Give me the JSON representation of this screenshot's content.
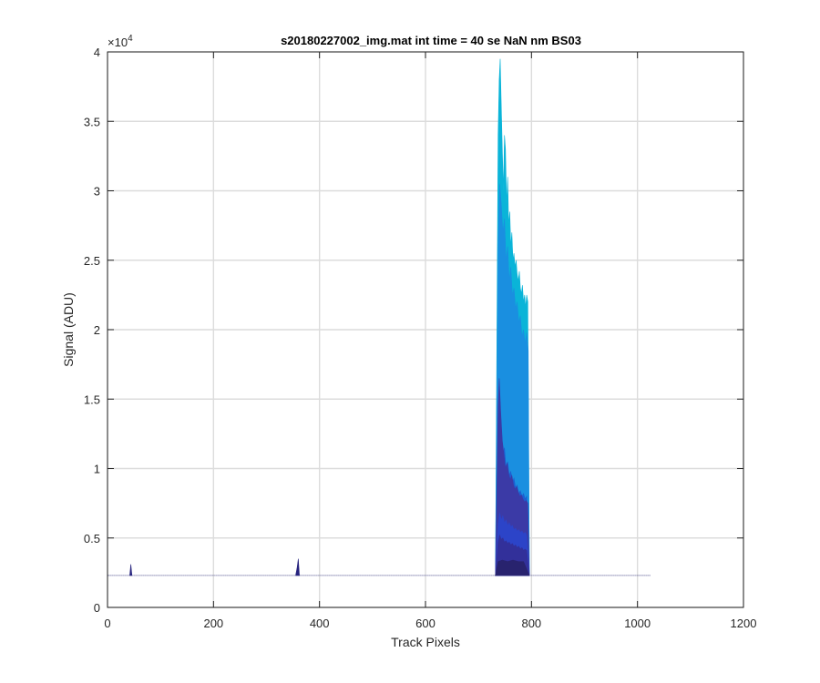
{
  "chart_data": {
    "type": "area",
    "title": "s20180227002_img.mat int time = 40 se  NaN nm BS03",
    "xlabel": "Track Pixels",
    "ylabel": "Signal (ADU)",
    "xlim": [
      0,
      1200
    ],
    "ylim": [
      0,
      40000
    ],
    "x_ticks": [
      0,
      200,
      400,
      600,
      800,
      1000,
      1200
    ],
    "x_tick_labels": [
      "0",
      "200",
      "400",
      "600",
      "800",
      "1000",
      "1200"
    ],
    "y_ticks": [
      0,
      5000,
      10000,
      15000,
      20000,
      25000,
      30000,
      35000,
      40000
    ],
    "y_tick_labels": [
      "0",
      "0.5",
      "1",
      "1.5",
      "2",
      "2.5",
      "3",
      "3.5",
      "4"
    ],
    "y_exponent_label": "×10",
    "y_exponent_power": "4",
    "grid": true,
    "baseline": 2300,
    "x_extent": [
      1,
      1024
    ],
    "series": [
      {
        "color": "#0ab4d8",
        "points": [
          [
            732,
            2300
          ],
          [
            737,
            34000
          ],
          [
            739,
            38000
          ],
          [
            741,
            39500
          ],
          [
            743,
            36000
          ],
          [
            745,
            33000
          ],
          [
            747,
            30000
          ],
          [
            749,
            34000
          ],
          [
            751,
            33000
          ],
          [
            753,
            29000
          ],
          [
            755,
            31000
          ],
          [
            757,
            27500
          ],
          [
            759,
            28500
          ],
          [
            761,
            26000
          ],
          [
            763,
            27000
          ],
          [
            765,
            25000
          ],
          [
            767,
            25500
          ],
          [
            769,
            24500
          ],
          [
            771,
            25000
          ],
          [
            773,
            24000
          ],
          [
            775,
            23500
          ],
          [
            777,
            24200
          ],
          [
            779,
            23000
          ],
          [
            781,
            22600
          ],
          [
            783,
            23200
          ],
          [
            785,
            22000
          ],
          [
            787,
            22500
          ],
          [
            789,
            21600
          ],
          [
            791,
            22500
          ],
          [
            793,
            22000
          ],
          [
            796,
            2300
          ]
        ]
      },
      {
        "color": "#1a8fe0",
        "points": [
          [
            732,
            2300
          ],
          [
            737,
            26000
          ],
          [
            740,
            30500
          ],
          [
            743,
            29000
          ],
          [
            746,
            27000
          ],
          [
            749,
            28000
          ],
          [
            752,
            25000
          ],
          [
            755,
            26000
          ],
          [
            758,
            23500
          ],
          [
            761,
            24500
          ],
          [
            764,
            22500
          ],
          [
            767,
            23000
          ],
          [
            770,
            21500
          ],
          [
            773,
            22000
          ],
          [
            776,
            20500
          ],
          [
            779,
            21000
          ],
          [
            782,
            19500
          ],
          [
            785,
            20000
          ],
          [
            788,
            19000
          ],
          [
            791,
            19800
          ],
          [
            794,
            18500
          ],
          [
            796,
            2300
          ]
        ]
      },
      {
        "color": "#1c5ed0",
        "points": [
          [
            732,
            2300
          ],
          [
            737,
            11000
          ],
          [
            740,
            13500
          ],
          [
            743,
            12000
          ],
          [
            746,
            11000
          ],
          [
            749,
            11500
          ],
          [
            752,
            10000
          ],
          [
            755,
            10500
          ],
          [
            758,
            9500
          ],
          [
            761,
            9800
          ],
          [
            764,
            9000
          ],
          [
            767,
            9300
          ],
          [
            770,
            8600
          ],
          [
            773,
            8800
          ],
          [
            776,
            8200
          ],
          [
            779,
            8400
          ],
          [
            782,
            8000
          ],
          [
            785,
            8200
          ],
          [
            788,
            7800
          ],
          [
            791,
            8000
          ],
          [
            796,
            2300
          ]
        ]
      },
      {
        "color": "#3b3aa6",
        "points": [
          [
            732,
            2300
          ],
          [
            737,
            14500
          ],
          [
            739,
            16500
          ],
          [
            742,
            14000
          ],
          [
            745,
            12000
          ],
          [
            748,
            11000
          ],
          [
            751,
            10000
          ],
          [
            754,
            10400
          ],
          [
            757,
            9600
          ],
          [
            760,
            9200
          ],
          [
            763,
            9500
          ],
          [
            766,
            8800
          ],
          [
            769,
            8500
          ],
          [
            772,
            8700
          ],
          [
            775,
            8300
          ],
          [
            778,
            8000
          ],
          [
            781,
            8100
          ],
          [
            784,
            7800
          ],
          [
            787,
            7600
          ],
          [
            790,
            7700
          ],
          [
            793,
            7500
          ],
          [
            796,
            2300
          ]
        ]
      },
      {
        "color": "#2c44c8",
        "points": [
          [
            732,
            2300
          ],
          [
            737,
            6000
          ],
          [
            740,
            6800
          ],
          [
            743,
            6300
          ],
          [
            746,
            6600
          ],
          [
            749,
            6100
          ],
          [
            752,
            6300
          ],
          [
            755,
            5900
          ],
          [
            758,
            6100
          ],
          [
            761,
            5800
          ],
          [
            764,
            5900
          ],
          [
            767,
            5600
          ],
          [
            770,
            5700
          ],
          [
            773,
            5500
          ],
          [
            776,
            5600
          ],
          [
            779,
            5400
          ],
          [
            782,
            5500
          ],
          [
            785,
            5300
          ],
          [
            788,
            5400
          ],
          [
            791,
            5200
          ],
          [
            796,
            2300
          ]
        ]
      },
      {
        "color": "#32309a",
        "points": [
          [
            732,
            2300
          ],
          [
            737,
            4700
          ],
          [
            740,
            5200
          ],
          [
            743,
            4900
          ],
          [
            746,
            5000
          ],
          [
            749,
            4700
          ],
          [
            752,
            4800
          ],
          [
            755,
            4600
          ],
          [
            758,
            4700
          ],
          [
            761,
            4500
          ],
          [
            764,
            4600
          ],
          [
            767,
            4400
          ],
          [
            770,
            4500
          ],
          [
            773,
            4300
          ],
          [
            776,
            4400
          ],
          [
            779,
            4200
          ],
          [
            782,
            4300
          ],
          [
            785,
            4100
          ],
          [
            788,
            4200
          ],
          [
            791,
            4100
          ],
          [
            796,
            2300
          ]
        ]
      },
      {
        "color": "#28236e",
        "points": [
          [
            732,
            2300
          ],
          [
            737,
            3300
          ],
          [
            745,
            3400
          ],
          [
            755,
            3300
          ],
          [
            765,
            3400
          ],
          [
            775,
            3300
          ],
          [
            785,
            3300
          ],
          [
            796,
            2300
          ]
        ]
      },
      {
        "color": "#26237e",
        "points": [
          [
            42,
            2300
          ],
          [
            44,
            3100
          ],
          [
            46,
            2300
          ]
        ]
      },
      {
        "color": "#26237e",
        "points": [
          [
            355,
            2300
          ],
          [
            358,
            2900
          ],
          [
            360,
            3500
          ],
          [
            362,
            2300
          ]
        ]
      }
    ]
  }
}
